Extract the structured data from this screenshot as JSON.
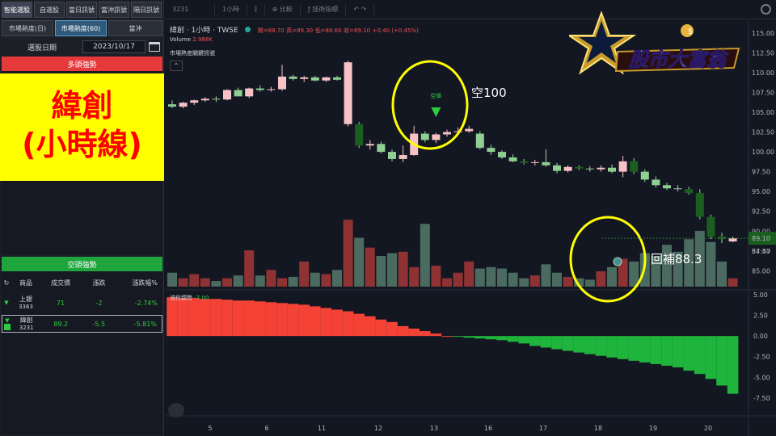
{
  "left_panel": {
    "tabs": [
      "智能選股",
      "自選股",
      "當日訊號",
      "當沖訊號",
      "隔日訊號"
    ],
    "subtabs": [
      "市場熱度(日)",
      "市場熱度(60)",
      "當沖"
    ],
    "date_label": "選股日期",
    "date_value": "2023/10/17",
    "bull_header": "多頭強勢",
    "bear_header": "空頭強勢",
    "callout_text": "緯創\n(小時線)",
    "table_headers": [
      "商品",
      "成交價",
      "漲跌",
      "漲跌幅%"
    ],
    "rows": [
      {
        "name": "上銀",
        "code": "3363",
        "price": "71",
        "change": "-2",
        "pct": "-2.74%"
      },
      {
        "name": "緯創",
        "code": "3231",
        "price": "89.2",
        "change": "-5.5",
        "pct": "-5.81%"
      }
    ]
  },
  "toolbar": {
    "symbol": "3231",
    "interval": "1小時",
    "compare": "比較",
    "indicators": "技術指標"
  },
  "legend": {
    "title": "緯創 · 1小時 · TWSE",
    "open": "開=88.70",
    "high": "高=89.30",
    "low": "低=88.60",
    "close": "收=89.10",
    "change": "+0.40 (+0.45%)",
    "volume_label": "Volume",
    "volume_value": "2.988K",
    "indicator_label": "市場熱度關鍵訊號",
    "wave_label": "波段趨勢",
    "wave_value": "-7.00",
    "signal_text": "空單"
  },
  "annotations": {
    "short_label": "空100",
    "cover_label": "回補88.3"
  },
  "logo_text": "股市大富翁",
  "price_badges": {
    "last": "89.10",
    "countdown": "54:47"
  },
  "chart_data": {
    "type": "candlestick",
    "x_ticks": [
      "5",
      "6",
      "11",
      "12",
      "13",
      "16",
      "17",
      "18",
      "19",
      "20"
    ],
    "y_ticks": [
      "115.00",
      "112.50",
      "110.00",
      "107.50",
      "105.00",
      "102.50",
      "100.00",
      "97.50",
      "95.00",
      "92.50",
      "90.00",
      "87.50",
      "85.00"
    ],
    "wave_ticks": [
      "5.00",
      "2.50",
      "0.00",
      "-2.50",
      "-5.00",
      "-7.50"
    ],
    "ylim": [
      83,
      116
    ],
    "wave_ylim": [
      -8.5,
      5.5
    ],
    "candles": [
      [
        106.0,
        106.5,
        105.5,
        105.7
      ],
      [
        105.7,
        106.3,
        105.5,
        106.2
      ],
      [
        106.2,
        106.6,
        105.9,
        106.5
      ],
      [
        106.5,
        106.9,
        106.3,
        106.7
      ],
      [
        106.7,
        107.0,
        106.3,
        106.6
      ],
      [
        106.6,
        107.9,
        106.5,
        107.8
      ],
      [
        107.8,
        108.1,
        107.2,
        107.0
      ],
      [
        107.0,
        108.1,
        106.8,
        108.0
      ],
      [
        108.0,
        108.4,
        107.6,
        107.8
      ],
      [
        107.8,
        108.2,
        107.6,
        107.9
      ],
      [
        107.9,
        111.0,
        107.7,
        109.5
      ],
      [
        109.5,
        109.7,
        109.0,
        109.2
      ],
      [
        109.2,
        109.6,
        108.8,
        109.4
      ],
      [
        109.4,
        109.6,
        108.9,
        109.0
      ],
      [
        109.0,
        109.5,
        108.8,
        109.4
      ],
      [
        109.4,
        109.6,
        109.0,
        109.1
      ],
      [
        103.5,
        111.5,
        103.2,
        111.3
      ],
      [
        103.5,
        103.8,
        100.5,
        100.8
      ],
      [
        100.8,
        101.5,
        100.3,
        101.0
      ],
      [
        101.0,
        101.3,
        99.8,
        100.0
      ],
      [
        100.0,
        100.3,
        98.8,
        99.1
      ],
      [
        99.1,
        100.8,
        98.7,
        99.6
      ],
      [
        99.6,
        103.3,
        99.5,
        102.3
      ],
      [
        102.3,
        102.6,
        101.2,
        101.5
      ],
      [
        101.5,
        102.4,
        101.1,
        102.2
      ],
      [
        102.2,
        102.8,
        101.9,
        102.5
      ],
      [
        102.5,
        103.1,
        102.3,
        102.6
      ],
      [
        102.6,
        103.3,
        102.4,
        102.9
      ],
      [
        102.3,
        102.6,
        100.3,
        100.5
      ],
      [
        100.5,
        100.9,
        99.6,
        100.0
      ],
      [
        100.0,
        100.2,
        99.1,
        99.3
      ],
      [
        99.3,
        99.7,
        98.7,
        98.8
      ],
      [
        98.8,
        99.1,
        98.4,
        98.6
      ],
      [
        98.6,
        99.0,
        98.3,
        98.7
      ],
      [
        98.7,
        100.3,
        98.1,
        98.3
      ],
      [
        98.3,
        98.6,
        97.3,
        97.6
      ],
      [
        97.6,
        98.3,
        97.4,
        98.1
      ],
      [
        98.1,
        98.3,
        97.7,
        97.9
      ],
      [
        97.9,
        98.2,
        97.5,
        97.8
      ],
      [
        97.8,
        98.3,
        97.5,
        98.0
      ],
      [
        98.0,
        98.4,
        97.3,
        97.5
      ],
      [
        97.5,
        99.5,
        96.8,
        98.8
      ],
      [
        98.8,
        99.2,
        97.2,
        97.5
      ],
      [
        97.5,
        97.8,
        96.2,
        96.5
      ],
      [
        96.5,
        96.9,
        95.5,
        95.8
      ],
      [
        95.8,
        96.1,
        95.2,
        95.4
      ],
      [
        95.4,
        95.8,
        95.0,
        95.3
      ],
      [
        95.3,
        95.6,
        94.6,
        94.8
      ],
      [
        94.8,
        95.3,
        91.5,
        91.8
      ],
      [
        91.8,
        92.1,
        89.0,
        89.3
      ],
      [
        89.3,
        89.8,
        88.5,
        89.0
      ],
      [
        88.7,
        89.3,
        88.6,
        89.1
      ]
    ],
    "volume": [
      1.0,
      0.6,
      0.9,
      0.6,
      0.4,
      0.6,
      0.8,
      2.6,
      0.8,
      1.2,
      0.6,
      0.7,
      1.8,
      1.0,
      0.9,
      1.2,
      4.8,
      3.5,
      2.8,
      2.2,
      2.4,
      2.5,
      1.4,
      4.5,
      1.5,
      0.6,
      1.0,
      1.8,
      1.3,
      1.4,
      1.3,
      1.0,
      0.6,
      0.8,
      1.6,
      1.0,
      0.7,
      0.6,
      0.5,
      1.1,
      1.4,
      2.0,
      1.8,
      2.4,
      2.2,
      3.0,
      2.5,
      3.4,
      4.0,
      3.2,
      1.8,
      0.6
    ],
    "volume_max": 5.5,
    "wave": [
      4.7,
      4.6,
      4.6,
      4.5,
      4.5,
      4.4,
      4.3,
      4.3,
      4.2,
      4.1,
      4.0,
      3.9,
      3.8,
      3.6,
      3.4,
      3.2,
      3.0,
      2.7,
      2.4,
      2.0,
      1.7,
      1.2,
      0.9,
      0.6,
      0.3,
      0.0,
      -0.1,
      -0.2,
      -0.3,
      -0.4,
      -0.5,
      -0.7,
      -0.9,
      -1.2,
      -1.4,
      -1.6,
      -1.8,
      -2.0,
      -2.2,
      -2.4,
      -2.6,
      -2.8,
      -3.0,
      -3.2,
      -3.4,
      -3.6,
      -3.8,
      -4.2,
      -4.6,
      -5.2,
      -6.0,
      -7.0
    ]
  }
}
